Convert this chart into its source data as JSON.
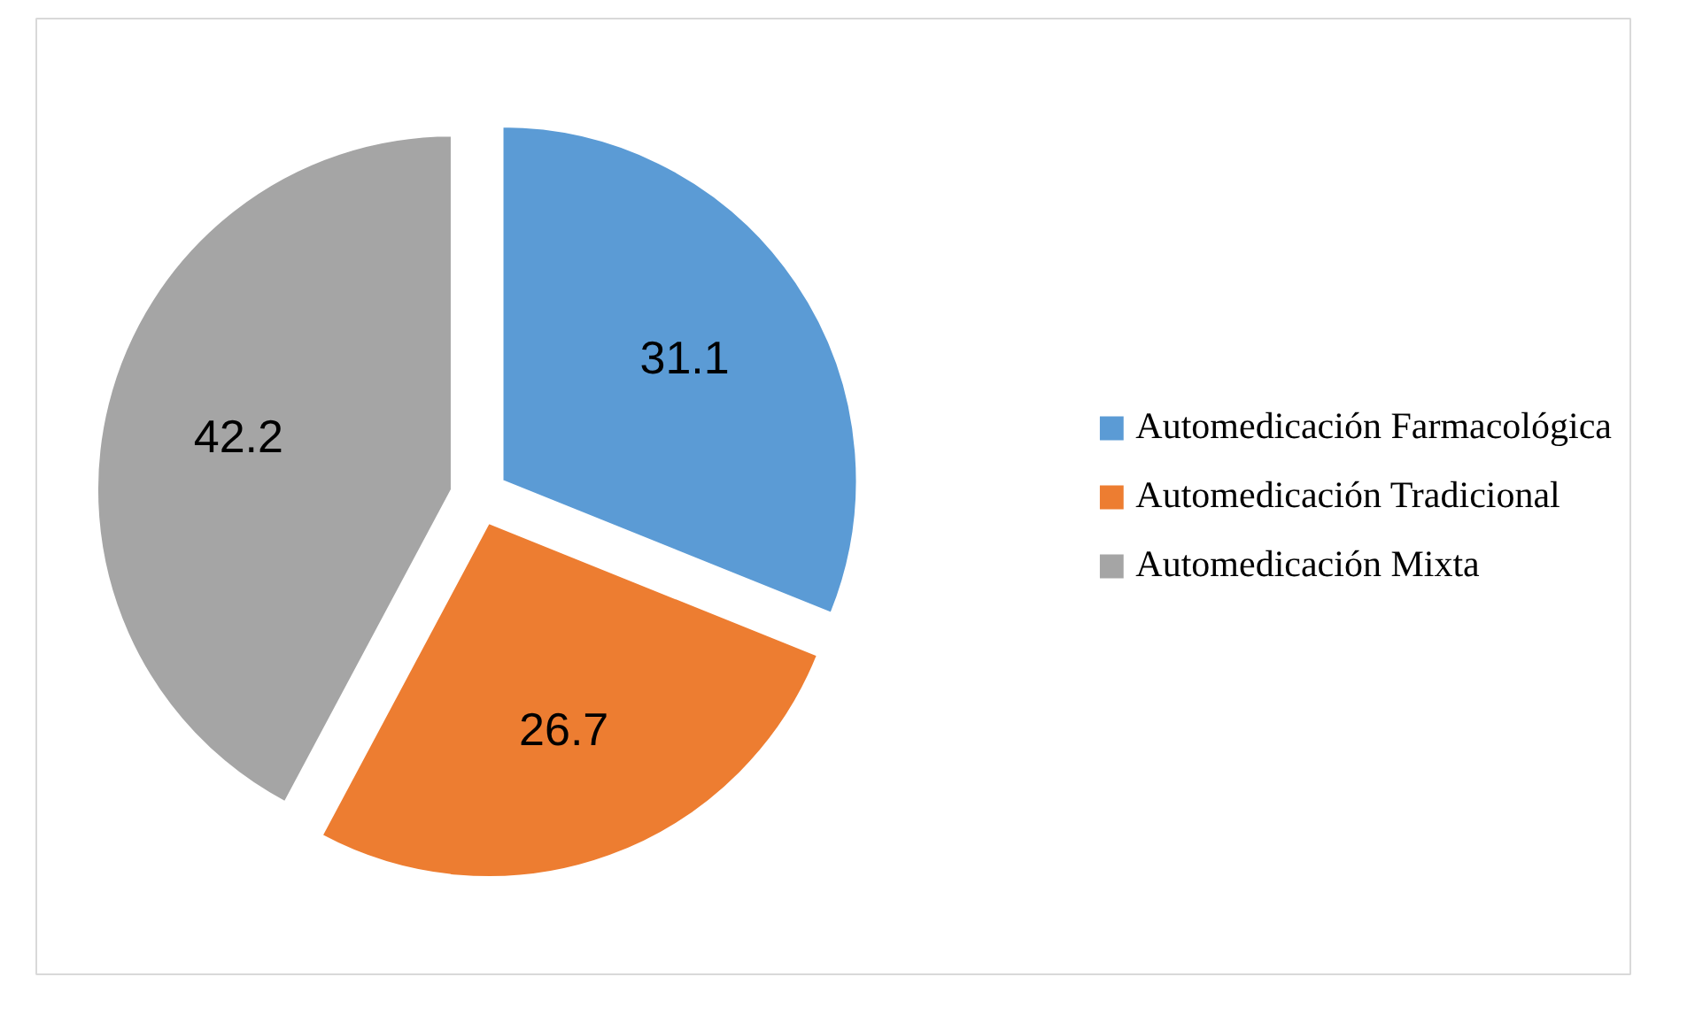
{
  "chart_data": {
    "type": "pie",
    "categories": [
      "Automedicación Farmacológica",
      "Automedicación Tradicional",
      "Automedicación Mixta"
    ],
    "values": [
      31.1,
      26.7,
      42.2
    ],
    "colors": [
      "#5b9bd5",
      "#ed7d31",
      "#a5a5a5"
    ],
    "data_labels": true,
    "legend": "right"
  }
}
